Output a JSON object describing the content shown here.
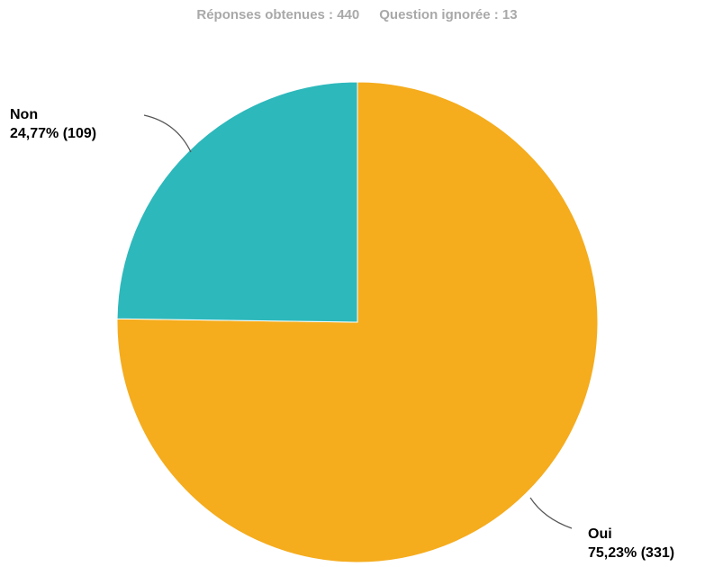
{
  "summary": {
    "answered_label": "Réponses obtenues : 440",
    "skipped_label": "Question ignorée : 13"
  },
  "chart_data": {
    "type": "pie",
    "title": "",
    "categories": [
      "Oui",
      "Non"
    ],
    "values": [
      331,
      109
    ],
    "percent_labels": [
      "75,23% (331)",
      "24,77% (109)"
    ],
    "colors": [
      "#f5ac1d",
      "#2db8bb"
    ],
    "start_angle_deg": 0,
    "direction": "clockwise"
  }
}
